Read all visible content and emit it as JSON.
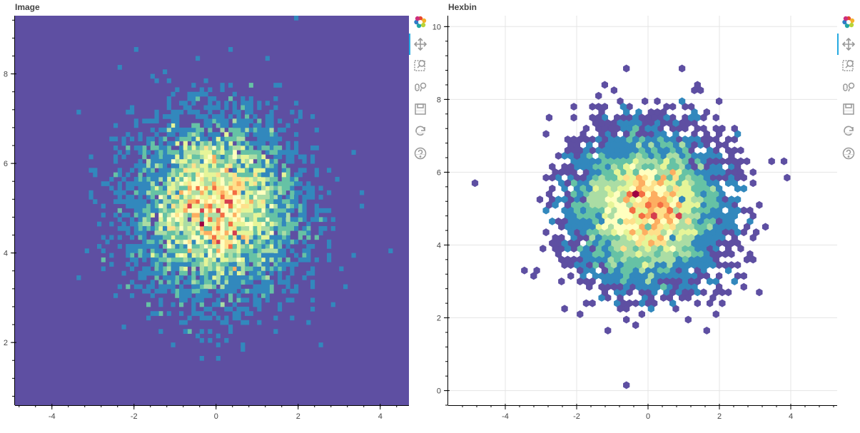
{
  "panels": [
    {
      "title": "Image",
      "toolbar": {
        "logo": "bokeh-logo-icon",
        "tools": [
          "pan-icon",
          "box-zoom-icon",
          "wheel-zoom-icon",
          "save-icon",
          "reset-icon",
          "help-icon"
        ],
        "active": "pan-icon"
      }
    },
    {
      "title": "Hexbin",
      "toolbar": {
        "logo": "bokeh-logo-icon",
        "tools": [
          "pan-icon",
          "box-zoom-icon",
          "wheel-zoom-icon",
          "save-icon",
          "reset-icon",
          "help-icon"
        ],
        "active": "pan-icon"
      }
    }
  ],
  "chart_data": [
    {
      "type": "heatmap",
      "title": "Image",
      "xlim": [
        -4.9,
        4.7
      ],
      "ylim": [
        0.6,
        9.3
      ],
      "x_ticks": [
        -4,
        -2,
        0,
        2,
        4
      ],
      "x_tick_labels": [
        "-4",
        "-2",
        "0",
        "2",
        "4"
      ],
      "y_ticks": [
        2,
        4,
        6,
        8
      ],
      "y_tick_labels": [
        "2",
        "4",
        "6",
        "8"
      ],
      "grid": false,
      "palette": "Spectral",
      "palette_colors": [
        "#5e4fa2",
        "#3288bd",
        "#66c2a5",
        "#abdda4",
        "#e6f598",
        "#ffffbf",
        "#fee08b",
        "#fdae61",
        "#f46d43",
        "#d53e4f",
        "#9e0142"
      ],
      "distribution": {
        "center_x": 0,
        "center_y": 5,
        "sigma_x": 1,
        "sigma_y": 1
      },
      "background_color": "#5e4fa2"
    },
    {
      "type": "heatmap",
      "subtype": "hexbin",
      "title": "Hexbin",
      "xlim": [
        -5.6,
        5.3
      ],
      "ylim": [
        -0.4,
        10.3
      ],
      "x_ticks": [
        -4,
        -2,
        0,
        2,
        4
      ],
      "x_tick_labels": [
        "-4",
        "-2",
        "0",
        "2",
        "4"
      ],
      "y_ticks": [
        0,
        2,
        4,
        6,
        8,
        10
      ],
      "y_tick_labels": [
        "0",
        "2",
        "4",
        "6",
        "8",
        "10"
      ],
      "grid": true,
      "palette": "Spectral",
      "palette_colors": [
        "#5e4fa2",
        "#3288bd",
        "#66c2a5",
        "#abdda4",
        "#e6f598",
        "#ffffbf",
        "#fee08b",
        "#fdae61",
        "#f46d43",
        "#d53e4f",
        "#9e0142"
      ],
      "hex_size": 0.1,
      "distribution": {
        "center_x": 0,
        "center_y": 5,
        "sigma_x": 1,
        "sigma_y": 1
      }
    }
  ]
}
